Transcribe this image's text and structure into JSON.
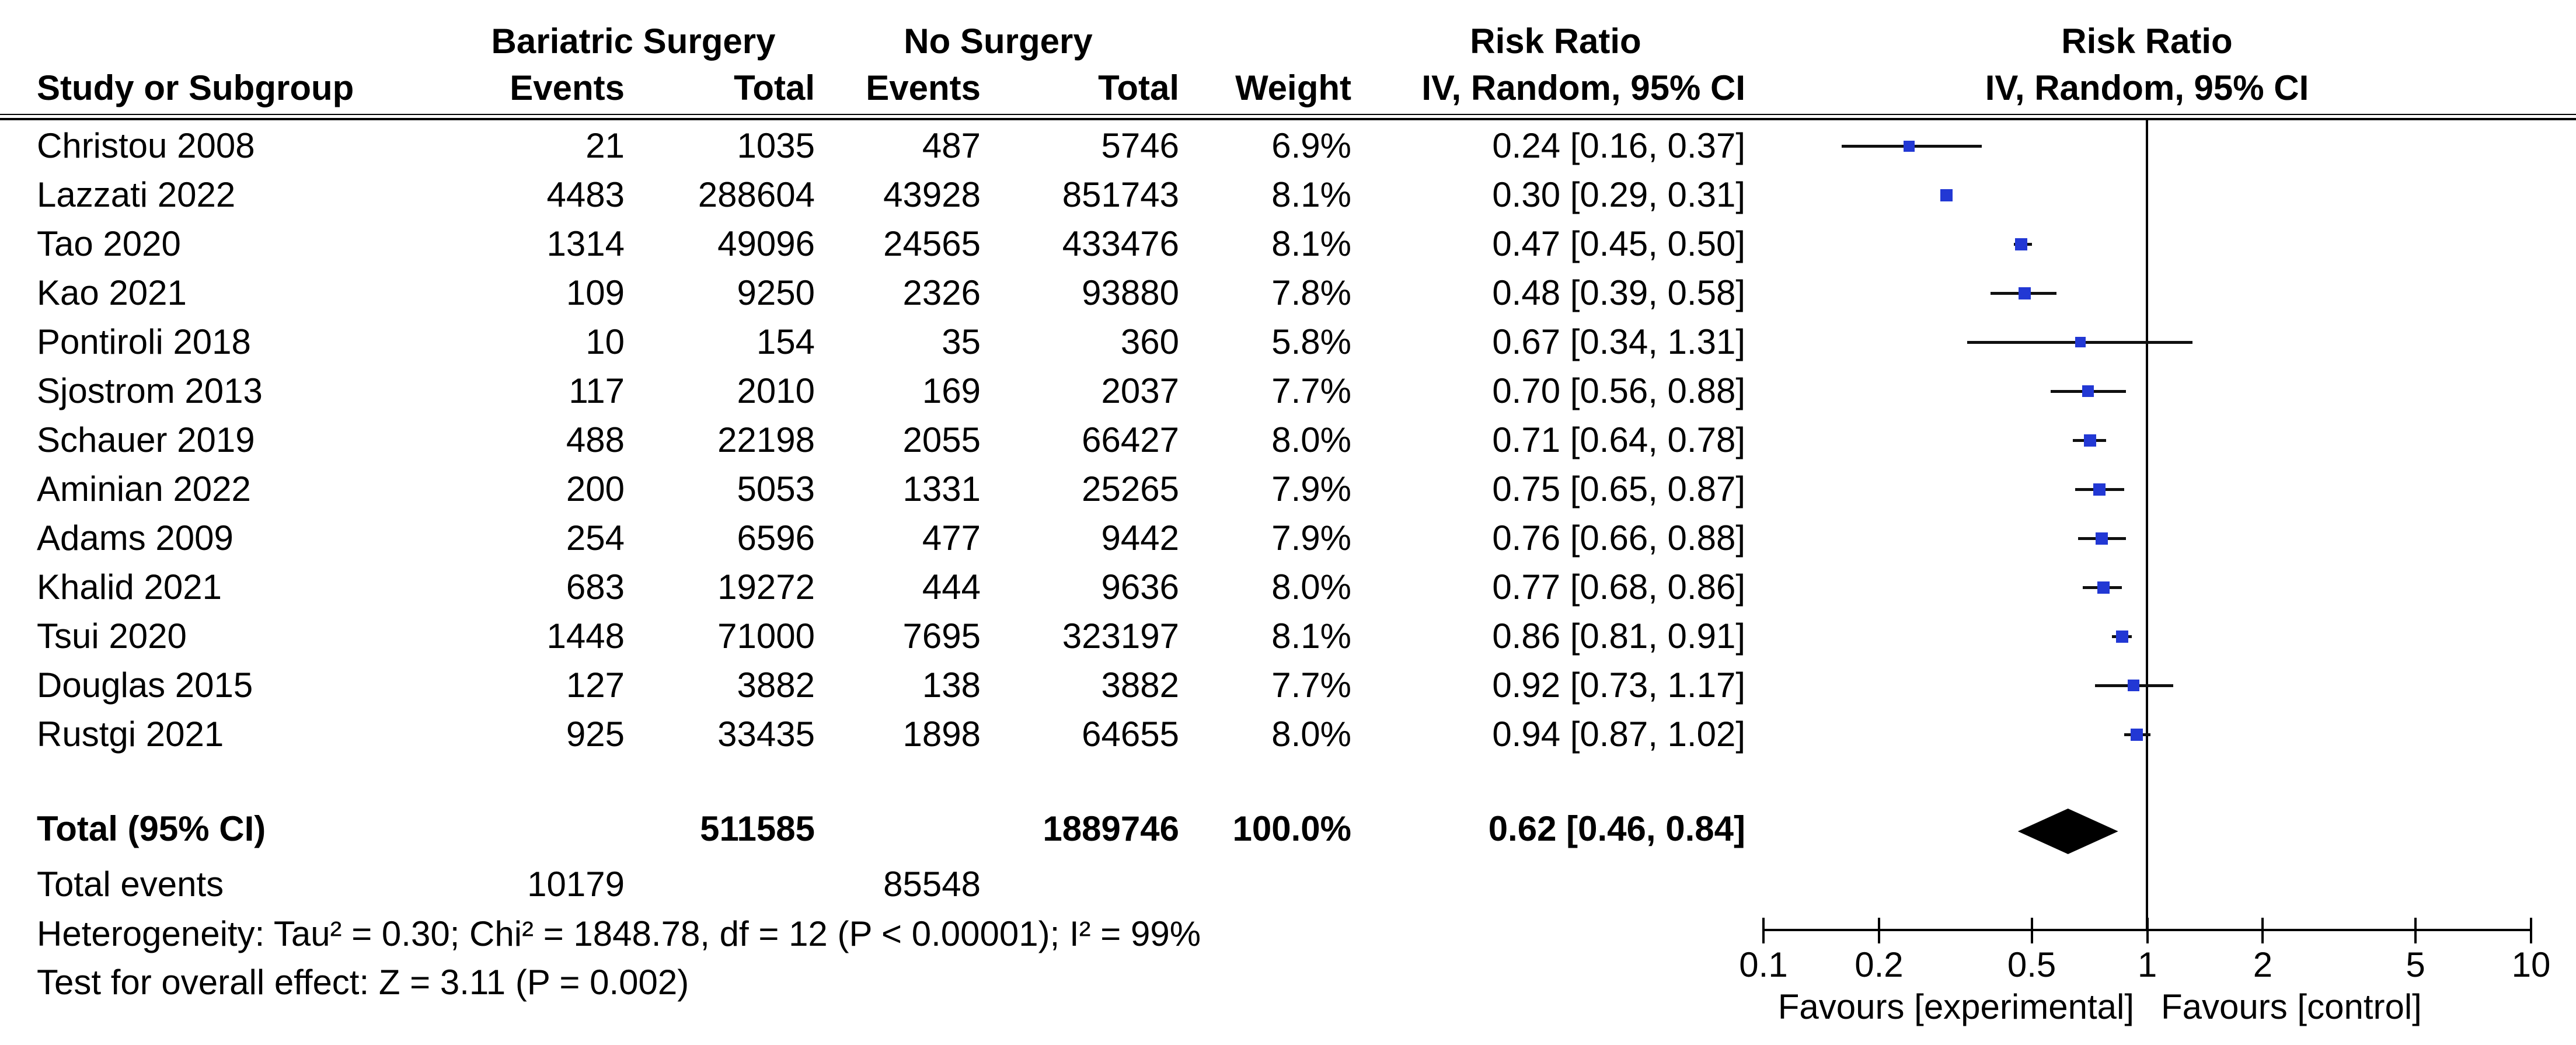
{
  "header": {
    "group1": "Bariatric Surgery",
    "group2": "No Surgery",
    "col_study": "Study or Subgroup",
    "col_events1": "Events",
    "col_total1": "Total",
    "col_events2": "Events",
    "col_total2": "Total",
    "col_weight": "Weight",
    "rr_label_table": "Risk Ratio",
    "rr_method_table": "IV, Random, 95% CI",
    "rr_label_plot": "Risk Ratio",
    "rr_method_plot": "IV, Random, 95% CI"
  },
  "chart_data": {
    "type": "forest",
    "effect_measure": "Risk Ratio",
    "model": "IV, Random, 95% CI",
    "x_axis": {
      "scale": "log",
      "range": [
        0.1,
        10
      ],
      "ticks": [
        "0.1",
        "0.2",
        "0.5",
        "1",
        "2",
        "5",
        "10"
      ],
      "tick_values": [
        0.1,
        0.2,
        0.5,
        1,
        2,
        5,
        10
      ]
    },
    "favours_left": "Favours [experimental]",
    "favours_right": "Favours [control]",
    "square_color": "#2238D4",
    "line_color": "#000000",
    "studies": [
      {
        "name": "Christou 2008",
        "events1": "21",
        "total1": "1035",
        "events2": "487",
        "total2": "5746",
        "weight": "6.9%",
        "rr_text": "0.24 [0.16, 0.37]",
        "rr": 0.24,
        "lo": 0.16,
        "hi": 0.37,
        "weight_pct": 6.9
      },
      {
        "name": "Lazzati 2022",
        "events1": "4483",
        "total1": "288604",
        "events2": "43928",
        "total2": "851743",
        "weight": "8.1%",
        "rr_text": "0.30 [0.29, 0.31]",
        "rr": 0.3,
        "lo": 0.29,
        "hi": 0.31,
        "weight_pct": 8.1
      },
      {
        "name": "Tao 2020",
        "events1": "1314",
        "total1": "49096",
        "events2": "24565",
        "total2": "433476",
        "weight": "8.1%",
        "rr_text": "0.47 [0.45, 0.50]",
        "rr": 0.47,
        "lo": 0.45,
        "hi": 0.5,
        "weight_pct": 8.1
      },
      {
        "name": "Kao 2021",
        "events1": "109",
        "total1": "9250",
        "events2": "2326",
        "total2": "93880",
        "weight": "7.8%",
        "rr_text": "0.48 [0.39, 0.58]",
        "rr": 0.48,
        "lo": 0.39,
        "hi": 0.58,
        "weight_pct": 7.8
      },
      {
        "name": "Pontiroli 2018",
        "events1": "10",
        "total1": "154",
        "events2": "35",
        "total2": "360",
        "weight": "5.8%",
        "rr_text": "0.67 [0.34, 1.31]",
        "rr": 0.67,
        "lo": 0.34,
        "hi": 1.31,
        "weight_pct": 5.8
      },
      {
        "name": "Sjostrom 2013",
        "events1": "117",
        "total1": "2010",
        "events2": "169",
        "total2": "2037",
        "weight": "7.7%",
        "rr_text": "0.70 [0.56, 0.88]",
        "rr": 0.7,
        "lo": 0.56,
        "hi": 0.88,
        "weight_pct": 7.7
      },
      {
        "name": "Schauer 2019",
        "events1": "488",
        "total1": "22198",
        "events2": "2055",
        "total2": "66427",
        "weight": "8.0%",
        "rr_text": "0.71 [0.64, 0.78]",
        "rr": 0.71,
        "lo": 0.64,
        "hi": 0.78,
        "weight_pct": 8.0
      },
      {
        "name": "Aminian 2022",
        "events1": "200",
        "total1": "5053",
        "events2": "1331",
        "total2": "25265",
        "weight": "7.9%",
        "rr_text": "0.75 [0.65, 0.87]",
        "rr": 0.75,
        "lo": 0.65,
        "hi": 0.87,
        "weight_pct": 7.9
      },
      {
        "name": "Adams 2009",
        "events1": "254",
        "total1": "6596",
        "events2": "477",
        "total2": "9442",
        "weight": "7.9%",
        "rr_text": "0.76 [0.66, 0.88]",
        "rr": 0.76,
        "lo": 0.66,
        "hi": 0.88,
        "weight_pct": 7.9
      },
      {
        "name": "Khalid 2021",
        "events1": "683",
        "total1": "19272",
        "events2": "444",
        "total2": "9636",
        "weight": "8.0%",
        "rr_text": "0.77 [0.68, 0.86]",
        "rr": 0.77,
        "lo": 0.68,
        "hi": 0.86,
        "weight_pct": 8.0
      },
      {
        "name": "Tsui 2020",
        "events1": "1448",
        "total1": "71000",
        "events2": "7695",
        "total2": "323197",
        "weight": "8.1%",
        "rr_text": "0.86 [0.81, 0.91]",
        "rr": 0.86,
        "lo": 0.81,
        "hi": 0.91,
        "weight_pct": 8.1
      },
      {
        "name": "Douglas 2015",
        "events1": "127",
        "total1": "3882",
        "events2": "138",
        "total2": "3882",
        "weight": "7.7%",
        "rr_text": "0.92 [0.73, 1.17]",
        "rr": 0.92,
        "lo": 0.73,
        "hi": 1.17,
        "weight_pct": 7.7
      },
      {
        "name": "Rustgi 2021",
        "events1": "925",
        "total1": "33435",
        "events2": "1898",
        "total2": "64655",
        "weight": "8.0%",
        "rr_text": "0.94 [0.87, 1.02]",
        "rr": 0.94,
        "lo": 0.87,
        "hi": 1.02,
        "weight_pct": 8.0
      }
    ],
    "total": {
      "label": "Total (95% CI)",
      "total1": "511585",
      "total2": "1889746",
      "weight": "100.0%",
      "rr_text": "0.62 [0.46, 0.84]",
      "rr": 0.62,
      "lo": 0.46,
      "hi": 0.84
    },
    "total_events": {
      "label": "Total events",
      "events1": "10179",
      "events2": "85548"
    },
    "heterogeneity": "Heterogeneity: Tau² = 0.30; Chi² = 1848.78, df = 12 (P < 0.00001); I² = 99%",
    "overall_effect": "Test for overall effect: Z = 3.11 (P = 0.002)"
  }
}
